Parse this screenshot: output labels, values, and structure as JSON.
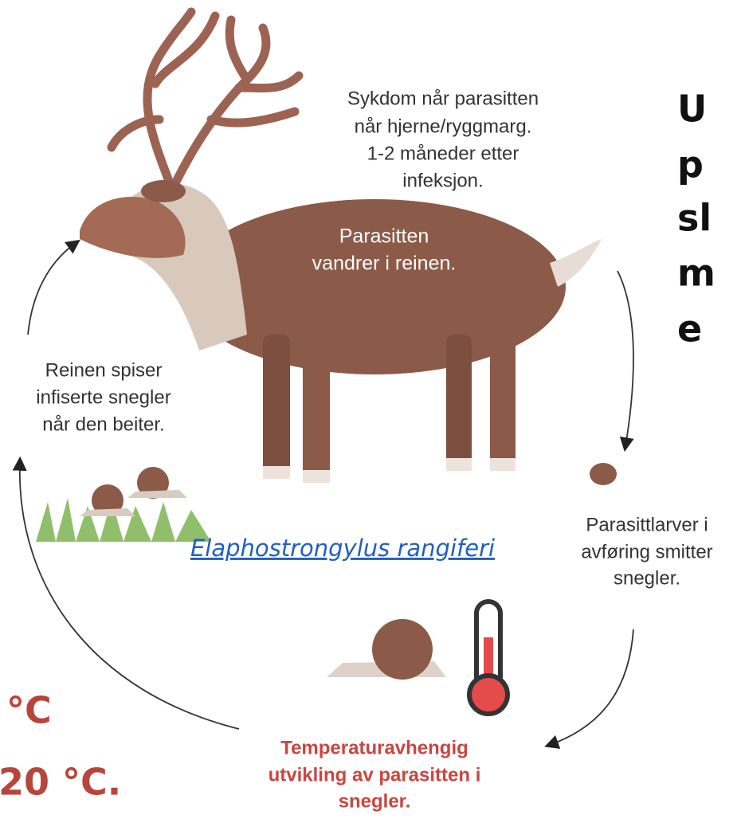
{
  "diagram": {
    "disease": [
      "Sykdom når parasitten",
      "når hjerne/ryggmarg.",
      "1-2 måneder etter",
      "infeksjon."
    ],
    "migrates": [
      "Parasitten",
      "vandrer i reinen."
    ],
    "eats": [
      "Reinen spiser",
      "infiserte snegler",
      "når den beiter."
    ],
    "larvae": [
      "Parasittlarver i",
      "avføring smitter",
      "snegler."
    ],
    "temperature": [
      "Temperaturavhengig",
      "utvikling av parasitten i",
      "snegler."
    ],
    "species_link": "Elaphostrongylus rangiferi",
    "right_fragments": [
      "U",
      "p",
      "sl",
      "m",
      "e"
    ],
    "left_fragments": [
      "°C",
      "20 °C."
    ]
  }
}
